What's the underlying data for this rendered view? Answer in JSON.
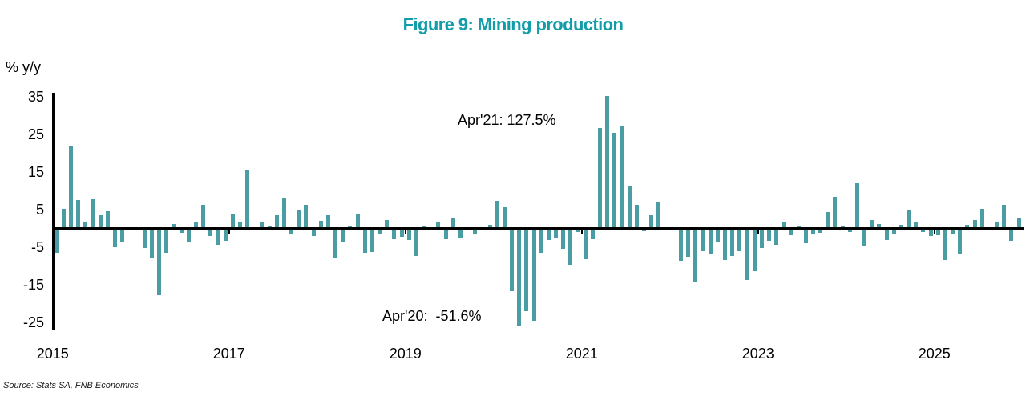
{
  "figure": {
    "title": "Figure 9: Mining production",
    "y_axis_unit_label": "% y/y",
    "annotation_apr21": "Apr'21: 127.5%",
    "annotation_apr20": "Apr'20:  -51.6%",
    "source": "Source: Stats SA, FNB Economics"
  },
  "colors": {
    "title_teal": "#129DA8",
    "bar_teal": "#4A9DA3",
    "axis_black": "#000000"
  },
  "chart_data": {
    "type": "bar",
    "title": "Figure 9: Mining production",
    "ylabel": "% y/y",
    "series_name": "Mining production, % y/y",
    "freq": "monthly",
    "start_month": "2015-01",
    "end_month": "2025-12",
    "x_tick_labels": [
      "2015",
      "2017",
      "2019",
      "2021",
      "2023",
      "2025"
    ],
    "y_ticks": [
      35,
      25,
      15,
      5,
      -5,
      -15,
      -25
    ],
    "ylim_display": [
      -25.8,
      35.3
    ],
    "grid": false,
    "legend": false,
    "annotations": [
      {
        "text": "Apr'21: 127.5%",
        "refers_to": "2021-04"
      },
      {
        "text": "Apr'20:  -51.6%",
        "refers_to": "2020-04"
      }
    ],
    "clipped_bars": [
      {
        "month": "2020-04",
        "actual_value": -51.6
      },
      {
        "month": "2021-04",
        "actual_value": 127.5
      }
    ],
    "values": [
      -6.5,
      5.3,
      22.0,
      7.6,
      1.8,
      7.8,
      3.6,
      4.6,
      -5.0,
      -3.6,
      0.3,
      0.3,
      -5.2,
      -7.8,
      -17.7,
      -6.4,
      1.2,
      -1.2,
      -3.8,
      1.6,
      6.2,
      -2.1,
      -4.3,
      -3.2,
      4.0,
      1.8,
      15.6,
      0.1,
      1.6,
      0.7,
      3.5,
      8.0,
      -1.6,
      4.7,
      6.2,
      -2.1,
      2.1,
      3.5,
      -8.0,
      -3.6,
      0.7,
      3.9,
      -6.4,
      -6.2,
      -1.4,
      2.3,
      -2.8,
      -2.3,
      -3.0,
      -7.4,
      0.5,
      0.4,
      1.6,
      -2.8,
      2.6,
      -2.6,
      -0.3,
      -1.4,
      0.4,
      0.9,
      7.3,
      5.7,
      -16.7,
      -51.6,
      -22.0,
      -24.5,
      -6.4,
      -3.0,
      -2.5,
      -5.5,
      -9.7,
      -0.9,
      -8.1,
      -2.8,
      26.7,
      127.5,
      25.5,
      27.3,
      11.3,
      6.2,
      -0.7,
      3.5,
      6.9,
      0.3,
      -0.3,
      -8.7,
      -7.5,
      -14.2,
      -6.0,
      -6.7,
      -3.8,
      -8.5,
      -7.3,
      -6.0,
      -13.8,
      -11.3,
      -5.3,
      -3.2,
      -4.3,
      1.6,
      -1.9,
      0.5,
      -3.9,
      -1.4,
      -1.1,
      4.3,
      8.3,
      0.6,
      -1.0,
      12.1,
      -4.5,
      2.3,
      1.2,
      -3.0,
      -1.6,
      0.9,
      4.8,
      1.5,
      -0.9,
      -2.0,
      -1.8,
      -8.4,
      -1.7,
      -6.9,
      0.9,
      2.3,
      5.3,
      0.4,
      1.7,
      6.2,
      -3.2,
      2.6
    ]
  }
}
